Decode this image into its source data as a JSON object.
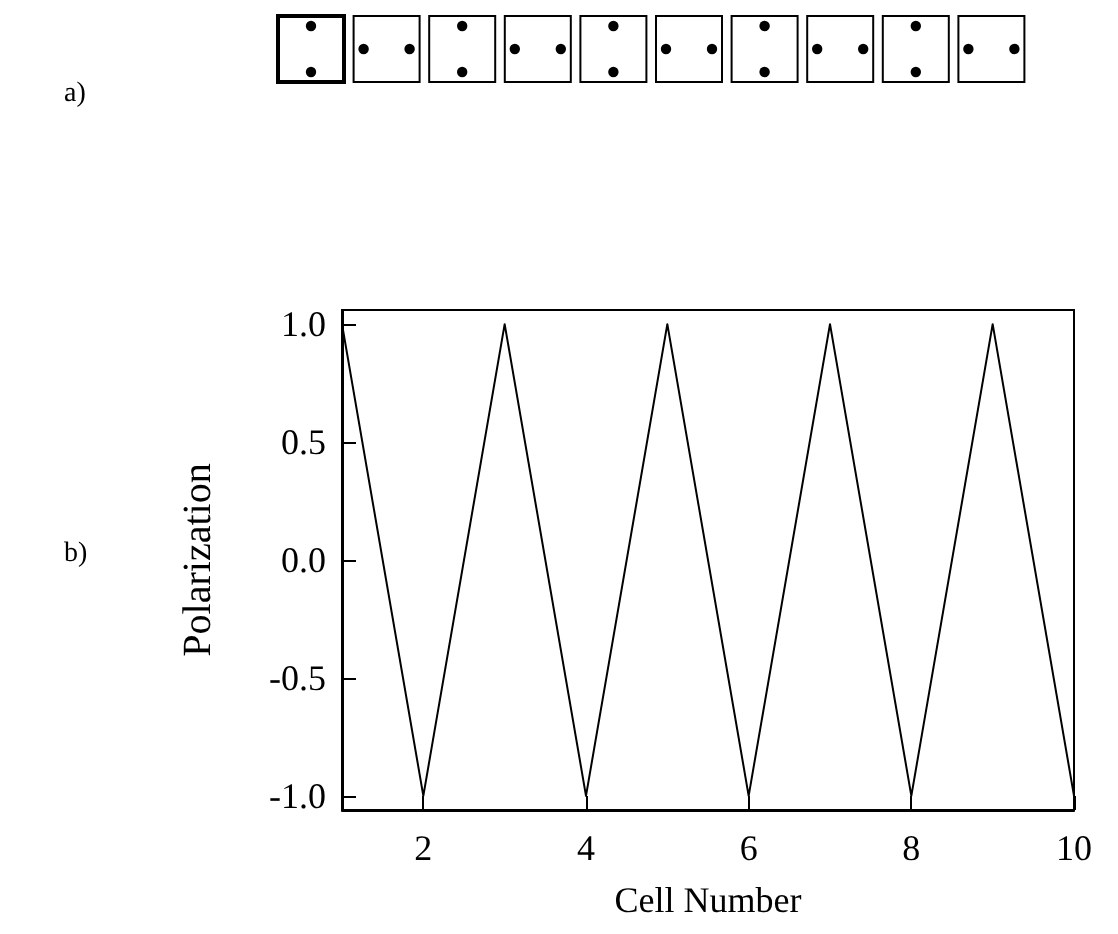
{
  "chart_data": {
    "type": "line",
    "xlabel": "Cell Number",
    "ylabel": "Polarization",
    "x": [
      1,
      2,
      3,
      4,
      5,
      6,
      7,
      8,
      9,
      10
    ],
    "series": [
      {
        "color": "#000000",
        "values": [
          1,
          -1,
          1,
          -1,
          1,
          -1,
          1,
          -1,
          1,
          -1
        ]
      }
    ],
    "xlim": [
      1,
      10
    ],
    "xticks": [
      2,
      4,
      6,
      8,
      10
    ],
    "ylim": [
      -1.06,
      1.06
    ],
    "yticks": [
      {
        "value": -1,
        "label": "-1.0"
      },
      {
        "value": -0.5,
        "label": "-0.5"
      },
      {
        "value": 0,
        "label": "0.0"
      },
      {
        "value": 0.5,
        "label": "0.5"
      },
      {
        "value": 1,
        "label": "1.0"
      }
    ],
    "grid": false,
    "marker": "none",
    "line_style": "solid",
    "annotations": [
      "a)",
      "b)"
    ]
  }
}
